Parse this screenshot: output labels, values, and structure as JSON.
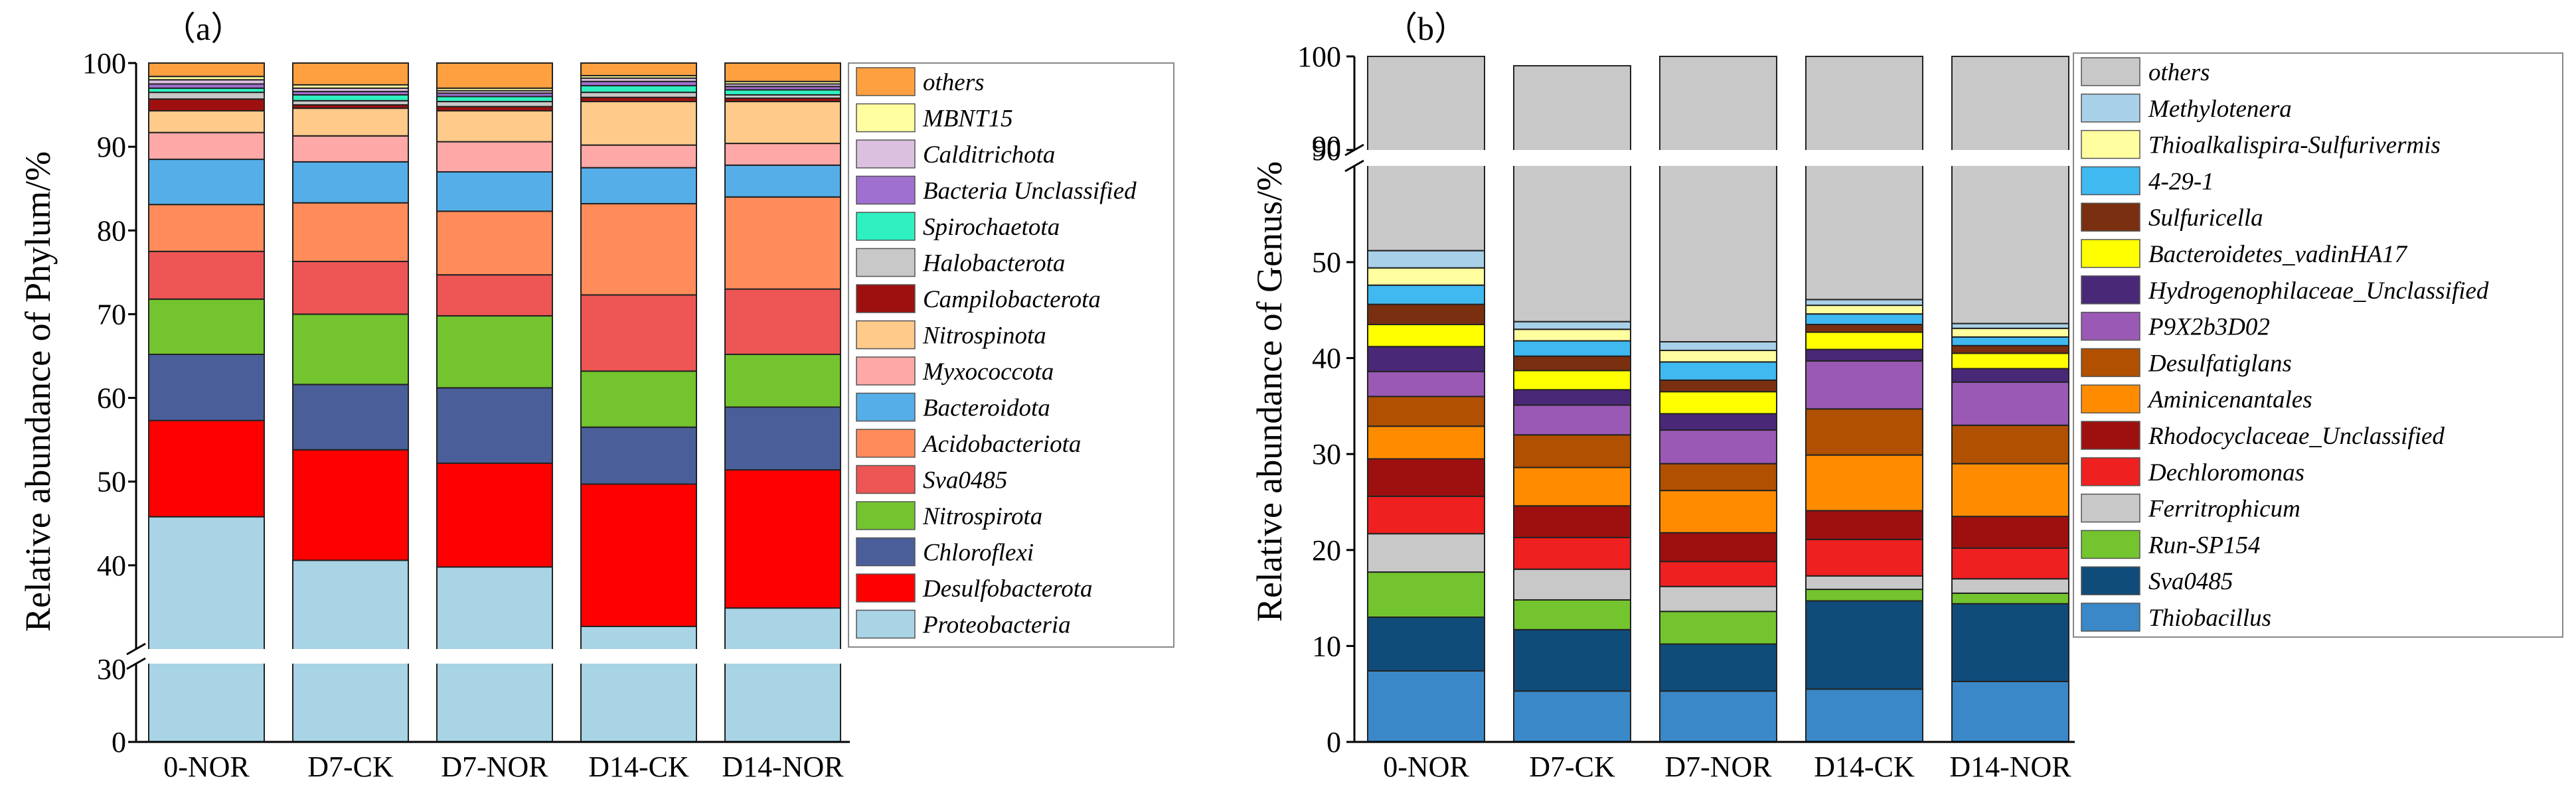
{
  "chart_data": [
    {
      "id": "a",
      "type": "bar",
      "stacked": true,
      "panel_label": "（a）",
      "xlabel": "",
      "ylabel": "Relative abundance of Phylum/%",
      "categories": [
        "0-NOR",
        "D7-CK",
        "D7-NOR",
        "D14-CK",
        "D14-NOR"
      ],
      "axis_break": {
        "lower_range": [
          0,
          30
        ],
        "upper_range": [
          30,
          100
        ],
        "label_low": "30",
        "label_high": "30"
      },
      "ylim": [
        0,
        100
      ],
      "yticks": [
        0,
        40,
        50,
        60,
        70,
        80,
        90,
        100
      ],
      "legend_position": "right",
      "series": [
        {
          "name": "Proteobacteria",
          "color": "#a8d4e6",
          "values": [
            45.8,
            40.6,
            39.8,
            32.7,
            34.9
          ]
        },
        {
          "name": "Desulfobacterota",
          "color": "#ff0000",
          "values": [
            11.5,
            13.2,
            12.4,
            17.0,
            16.5
          ]
        },
        {
          "name": "Chloroflexi",
          "color": "#4a5f9a",
          "values": [
            7.9,
            7.8,
            9.0,
            6.8,
            7.5
          ]
        },
        {
          "name": "Nitrospirota",
          "color": "#73c42e",
          "values": [
            6.6,
            8.4,
            8.6,
            6.7,
            6.3
          ]
        },
        {
          "name": "Sva0485",
          "color": "#ee5555",
          "values": [
            5.7,
            6.3,
            4.9,
            9.1,
            7.8
          ]
        },
        {
          "name": "Acidobacteriota",
          "color": "#ff8c5a",
          "values": [
            5.6,
            7.0,
            7.6,
            10.9,
            11.0
          ]
        },
        {
          "name": "Bacteroidota",
          "color": "#55aee8",
          "values": [
            5.4,
            4.9,
            4.7,
            4.3,
            3.8
          ]
        },
        {
          "name": "Myxococcota",
          "color": "#ffa8a8",
          "values": [
            3.2,
            3.1,
            3.6,
            2.7,
            2.6
          ]
        },
        {
          "name": "Nitrospinota",
          "color": "#ffca8a",
          "values": [
            2.6,
            3.3,
            3.7,
            5.2,
            5.0
          ]
        },
        {
          "name": "Campilobacterota",
          "color": "#9e1010",
          "values": [
            1.4,
            0.4,
            0.5,
            0.5,
            0.4
          ]
        },
        {
          "name": "Halobacterota",
          "color": "#c8c8c8",
          "values": [
            0.8,
            0.5,
            0.6,
            0.6,
            0.4
          ]
        },
        {
          "name": "Spirochaetota",
          "color": "#2ff0c0",
          "values": [
            0.5,
            0.7,
            0.6,
            0.8,
            0.6
          ]
        },
        {
          "name": "Bacteria Unclassified",
          "color": "#a070d0",
          "values": [
            0.5,
            0.4,
            0.4,
            0.5,
            0.4
          ]
        },
        {
          "name": "Calditrichota",
          "color": "#dcc0e0",
          "values": [
            0.5,
            0.4,
            0.3,
            0.4,
            0.3
          ]
        },
        {
          "name": "MBNT15",
          "color": "#ffffa0",
          "values": [
            0.4,
            0.4,
            0.3,
            0.3,
            0.3
          ]
        },
        {
          "name": "others",
          "color": "#ffa040",
          "values": [
            1.6,
            2.6,
            3.0,
            1.5,
            2.2
          ]
        }
      ]
    },
    {
      "id": "b",
      "type": "bar",
      "stacked": true,
      "panel_label": "（b）",
      "xlabel": "",
      "ylabel": "Relative abundance of Genus/%",
      "categories": [
        "0-NOR",
        "D7-CK",
        "D7-NOR",
        "D14-CK",
        "D14-NOR"
      ],
      "axis_break": {
        "lower_range": [
          0,
          55
        ],
        "upper_range": [
          90,
          100
        ],
        "label": "90"
      },
      "ylim": [
        0,
        100
      ],
      "yticks": [
        0,
        10,
        20,
        30,
        40,
        50,
        90,
        100
      ],
      "legend_position": "right",
      "series": [
        {
          "name": "Thiobacillus",
          "color": "#3a88c8",
          "values": [
            7.4,
            5.3,
            5.3,
            5.5,
            6.3
          ]
        },
        {
          "name": "Sva0485",
          "color": "#104c7a",
          "values": [
            5.6,
            6.4,
            4.9,
            9.2,
            8.1
          ]
        },
        {
          "name": "Run-SP154",
          "color": "#73c42e",
          "values": [
            4.7,
            3.1,
            3.4,
            1.2,
            1.1
          ]
        },
        {
          "name": "Ferritrophicum",
          "color": "#c8c8c8",
          "values": [
            4.0,
            3.2,
            2.6,
            1.4,
            1.5
          ]
        },
        {
          "name": "Dechloromonas",
          "color": "#ee2020",
          "values": [
            3.9,
            3.3,
            2.6,
            3.8,
            3.2
          ]
        },
        {
          "name": "Rhodocyclaceae_Unclassified",
          "color": "#9e1010",
          "values": [
            3.9,
            3.3,
            3.0,
            3.0,
            3.3
          ]
        },
        {
          "name": "Aminicenantales",
          "color": "#ff8c00",
          "values": [
            3.4,
            4.0,
            4.4,
            5.8,
            5.5
          ]
        },
        {
          "name": "Desulfatiglans",
          "color": "#b05000",
          "values": [
            3.1,
            3.4,
            2.8,
            4.8,
            4.0
          ]
        },
        {
          "name": "P9X2b3D02",
          "color": "#9b59b6",
          "values": [
            2.6,
            3.1,
            3.5,
            5.0,
            4.5
          ]
        },
        {
          "name": "Hydrogenophilaceae_Unclassified",
          "color": "#4a2878",
          "values": [
            2.6,
            1.6,
            1.7,
            1.2,
            1.4
          ]
        },
        {
          "name": "Bacteroidetes_vadinHA17",
          "color": "#ffff00",
          "values": [
            2.3,
            2.0,
            2.3,
            1.8,
            1.6
          ]
        },
        {
          "name": "Sulfuricella",
          "color": "#7a3010",
          "values": [
            2.1,
            1.5,
            1.2,
            0.8,
            0.8
          ]
        },
        {
          "name": "4-29-1",
          "color": "#40b8f0",
          "values": [
            2.0,
            1.6,
            1.9,
            1.1,
            0.9
          ]
        },
        {
          "name": "Thioalkalispira-Sulfurivermis",
          "color": "#ffffa0",
          "values": [
            1.8,
            1.2,
            1.2,
            0.9,
            0.9
          ]
        },
        {
          "name": "Methylotenera",
          "color": "#a8d0e8",
          "values": [
            1.8,
            0.8,
            0.9,
            0.6,
            0.5
          ]
        },
        {
          "name": "others",
          "color": "#c8c8c8",
          "values": [
            48.8,
            55.2,
            58.3,
            53.9,
            56.4
          ]
        }
      ]
    }
  ]
}
